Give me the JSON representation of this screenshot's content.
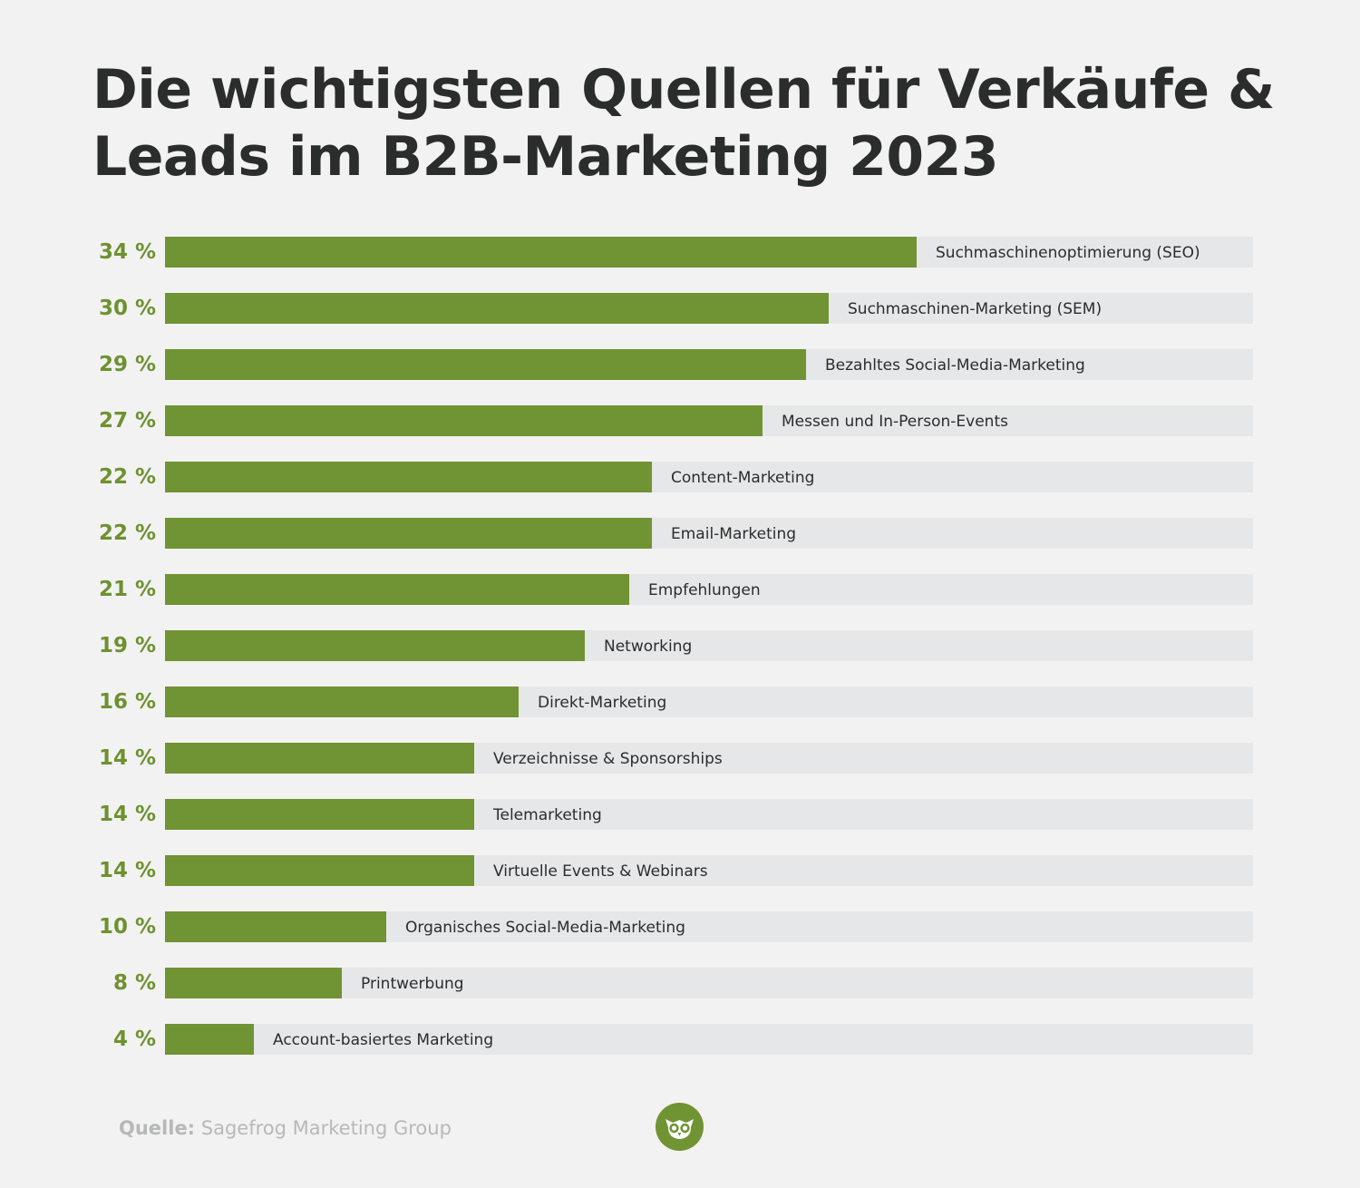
{
  "title": "Die wichtigsten Quellen für Verkäufe & Leads im B2B-Marketing 2023",
  "source": {
    "label": "Quelle:",
    "text": "Sagefrog Marketing Group"
  },
  "logo_icon": "owl-logo-icon",
  "colors": {
    "background": "#f2f2f2",
    "bar": "#709333",
    "track": "#e6e7e8",
    "percent_text": "#6e9130",
    "title_text": "#2b2d2c",
    "source_text": "#b7b8b9"
  },
  "chart_data": {
    "type": "bar",
    "orientation": "horizontal",
    "title": "Die wichtigsten Quellen für Verkäufe & Leads im B2B-Marketing 2023",
    "xlim": [
      0,
      49.2
    ],
    "value_format": "{v} %",
    "categories": [
      "Suchmaschinenoptimierung (SEO)",
      "Suchmaschinen-Marketing (SEM)",
      "Bezahltes Social-Media-Marketing",
      "Messen und In-Person-Events",
      "Content-Marketing",
      "Email-Marketing",
      "Empfehlungen",
      "Networking",
      "Direkt-Marketing",
      "Verzeichnisse & Sponsorships",
      "Telemarketing",
      "Virtuelle Events & Webinars",
      "Organisches Social-Media-Marketing",
      "Printwerbung",
      "Account-basiertes Marketing"
    ],
    "values": [
      34,
      30,
      29,
      27,
      22,
      22,
      21,
      19,
      16,
      14,
      14,
      14,
      10,
      8,
      4
    ],
    "value_labels": [
      "34 %",
      "30 %",
      "29 %",
      "27 %",
      "22 %",
      "22 %",
      "21 %",
      "19 %",
      "16 %",
      "14 %",
      "14 %",
      "14 %",
      "10 %",
      "8 %",
      "4 %"
    ],
    "fill_widths": [
      34,
      30,
      29,
      27,
      22,
      22,
      21,
      19,
      16,
      14,
      14,
      14,
      10,
      8,
      4
    ]
  }
}
